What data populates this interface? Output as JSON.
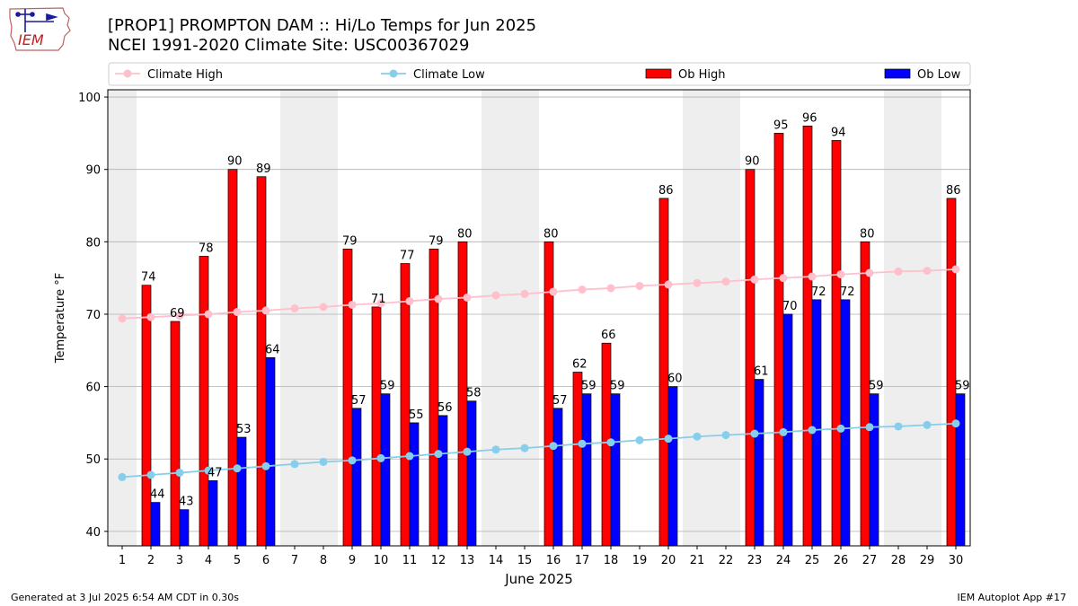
{
  "header": {
    "logo_text": "IEM",
    "title_line1": "[PROP1] PROMPTON DAM :: Hi/Lo Temps for Jun 2025",
    "title_line2": "NCEI 1991-2020 Climate Site: USC00367029"
  },
  "footer": {
    "left": "Generated at 3 Jul 2025 6:54 AM CDT in 0.30s",
    "right": "IEM Autoplot App #17"
  },
  "colors": {
    "climate_high": "#ffc0cb",
    "climate_low": "#87ceeb",
    "ob_high": "#ff0000",
    "ob_low": "#0000ff",
    "weekend_shade": "#eeeeee",
    "grid": "#b0b0b0"
  },
  "chart_data": {
    "type": "bar",
    "xlabel": "June 2025",
    "ylabel": "Temperature °F",
    "ylim": [
      38,
      101
    ],
    "yticks": [
      40,
      50,
      60,
      70,
      80,
      90,
      100
    ],
    "grid": "horizontal",
    "legend_position": "top",
    "days": [
      1,
      2,
      3,
      4,
      5,
      6,
      7,
      8,
      9,
      10,
      11,
      12,
      13,
      14,
      15,
      16,
      17,
      18,
      19,
      20,
      21,
      22,
      23,
      24,
      25,
      26,
      27,
      28,
      29,
      30
    ],
    "shaded_day_ranges": [
      [
        1,
        1
      ],
      [
        7,
        8
      ],
      [
        14,
        15
      ],
      [
        21,
        22
      ],
      [
        28,
        29
      ]
    ],
    "series": [
      {
        "name": "Climate High",
        "kind": "line",
        "values": [
          69.4,
          69.6,
          69.8,
          70.0,
          70.3,
          70.5,
          70.8,
          71.0,
          71.3,
          71.5,
          71.8,
          72.1,
          72.3,
          72.6,
          72.8,
          73.1,
          73.4,
          73.6,
          73.9,
          74.1,
          74.3,
          74.5,
          74.8,
          75.0,
          75.2,
          75.5,
          75.7,
          75.9,
          76.0,
          76.2
        ]
      },
      {
        "name": "Climate Low",
        "kind": "line",
        "values": [
          47.5,
          47.8,
          48.1,
          48.4,
          48.7,
          49.0,
          49.3,
          49.6,
          49.8,
          50.1,
          50.4,
          50.7,
          51.0,
          51.3,
          51.5,
          51.8,
          52.1,
          52.3,
          52.6,
          52.8,
          53.1,
          53.3,
          53.5,
          53.7,
          54.0,
          54.2,
          54.4,
          54.5,
          54.7,
          54.9
        ]
      },
      {
        "name": "Ob High",
        "kind": "bar",
        "values": [
          null,
          74,
          69,
          78,
          90,
          89,
          null,
          null,
          79,
          71,
          77,
          79,
          80,
          null,
          null,
          80,
          62,
          66,
          null,
          86,
          null,
          null,
          90,
          95,
          96,
          94,
          80,
          null,
          null,
          86
        ]
      },
      {
        "name": "Ob Low",
        "kind": "bar",
        "values": [
          null,
          44,
          43,
          47,
          53,
          64,
          null,
          null,
          57,
          59,
          55,
          56,
          58,
          null,
          null,
          57,
          59,
          59,
          null,
          60,
          null,
          null,
          61,
          70,
          72,
          72,
          59,
          null,
          null,
          59
        ]
      }
    ]
  }
}
